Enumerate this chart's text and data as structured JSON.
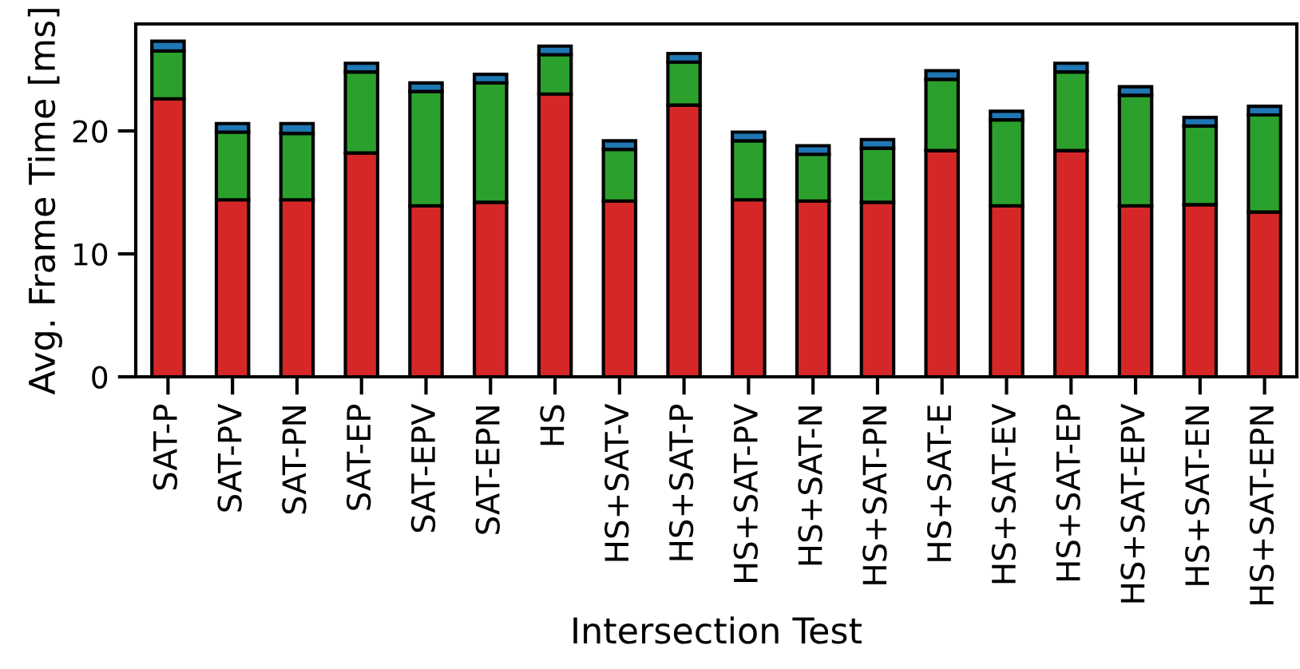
{
  "chart_data": {
    "type": "bar",
    "stacked": true,
    "xlabel": "Intersection Test",
    "ylabel": "Avg. Frame Time [ms]",
    "categories": [
      "SAT-P",
      "SAT-PV",
      "SAT-PN",
      "SAT-EP",
      "SAT-EPV",
      "SAT-EPN",
      "HS",
      "HS+SAT-V",
      "HS+SAT-P",
      "HS+SAT-PV",
      "HS+SAT-N",
      "HS+SAT-PN",
      "HS+SAT-E",
      "HS+SAT-EV",
      "HS+SAT-EP",
      "HS+SAT-EPV",
      "HS+SAT-EN",
      "HS+SAT-EPN"
    ],
    "series": [
      {
        "color": "#d62728",
        "values": [
          22.6,
          14.4,
          14.4,
          18.2,
          13.9,
          14.2,
          23.0,
          14.3,
          22.1,
          14.4,
          14.3,
          14.2,
          18.4,
          13.9,
          18.4,
          13.9,
          14.0,
          13.4
        ]
      },
      {
        "color": "#2ca02c",
        "values": [
          3.9,
          5.5,
          5.4,
          6.6,
          9.3,
          9.7,
          3.2,
          4.2,
          3.5,
          4.8,
          3.8,
          4.4,
          5.8,
          7.0,
          6.4,
          9.0,
          6.4,
          7.9
        ]
      },
      {
        "color": "#1f77b4",
        "values": [
          0.8,
          0.7,
          0.8,
          0.7,
          0.7,
          0.7,
          0.7,
          0.7,
          0.7,
          0.7,
          0.7,
          0.7,
          0.7,
          0.7,
          0.7,
          0.7,
          0.7,
          0.7
        ]
      }
    ],
    "ylim": [
      0,
      28.7
    ],
    "yticks": [
      0,
      10,
      20
    ],
    "grid": false,
    "legend": false
  }
}
